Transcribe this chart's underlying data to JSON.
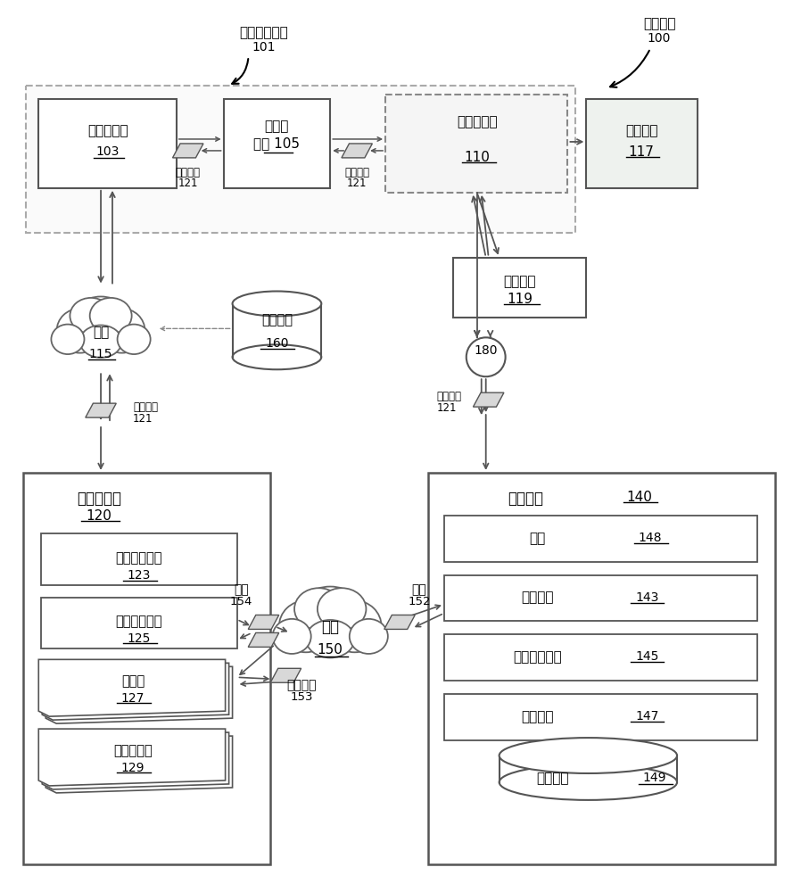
{
  "bg_color": "#ffffff",
  "labels": {
    "satellite_broadcast": "卫星广播系统",
    "satellite_broadcast_num": "101",
    "system_arch": "系统架构",
    "system_arch_num": "100",
    "content_server_l1": "内容服务器",
    "content_server_num": "103",
    "front_server_l1": "前端服",
    "front_server_l2": "务器",
    "front_server_num": "105",
    "sat_box": "卫星机顶盒",
    "sat_box_num": "110",
    "display": "显示设备",
    "display_num": "117",
    "data_packet": "数据分组",
    "data_packet_num": "121",
    "network_top": "网络",
    "network_top_num": "115",
    "data_storage_top": "数据存储",
    "data_storage_top_num": "160",
    "input_device": "输入设备",
    "input_device_num": "119",
    "circle_num": "180",
    "media_server": "媒体服务器",
    "media_server_num": "120",
    "sat_dispatch": "卫星分发组件",
    "sat_dispatch_num": "123",
    "ctrl_access": "控制访问组件",
    "ctrl_access_num": "125",
    "media_item": "媒体项",
    "media_item_num": "127",
    "supp_media": "补充媒体项",
    "supp_media_num": "129",
    "user_device": "用户设备",
    "user_device_num": "140",
    "app": "应用",
    "app_num": "148",
    "connect_comp": "连接组件",
    "connect_comp_num": "143",
    "sat_interface": "卫星接口组件",
    "sat_interface_num": "145",
    "auth_comp": "授权组件",
    "auth_comp_num": "147",
    "data_storage_bot": "数据存储",
    "data_storage_bot_num": "149",
    "network_bot": "网络",
    "network_bot_num": "150",
    "response": "响应",
    "response_num": "154",
    "request": "请求",
    "request_num": "152",
    "schedule_data": "调度数据",
    "schedule_data_num": "153"
  }
}
